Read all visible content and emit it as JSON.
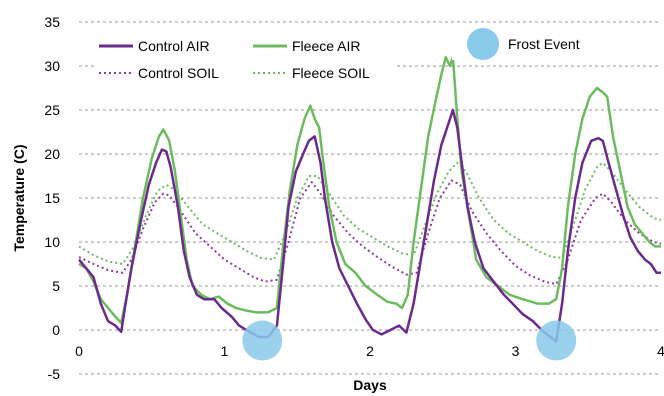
{
  "chart_data": {
    "type": "line",
    "xlabel": "Days",
    "ylabel": "Temperature (C)",
    "xlim": [
      0,
      4
    ],
    "ylim": [
      -5,
      35
    ],
    "x_ticks": [
      "0",
      "1",
      "2",
      "3",
      "4"
    ],
    "y_ticks": [
      "-5",
      "0",
      "5",
      "10",
      "15",
      "20",
      "25",
      "30",
      "35"
    ],
    "grid": "horizontal dashed",
    "legend_placement": "top",
    "series": [
      {
        "name": "Control AIR",
        "color": "#6b2a8c",
        "style": "solid",
        "points": [
          [
            0,
            8
          ],
          [
            0.05,
            7
          ],
          [
            0.1,
            6
          ],
          [
            0.15,
            3
          ],
          [
            0.2,
            1
          ],
          [
            0.25,
            0.5
          ],
          [
            0.29,
            -0.2
          ],
          [
            0.32,
            3
          ],
          [
            0.36,
            7
          ],
          [
            0.42,
            12
          ],
          [
            0.48,
            16.5
          ],
          [
            0.53,
            19
          ],
          [
            0.57,
            20.5
          ],
          [
            0.6,
            20.3
          ],
          [
            0.63,
            18.5
          ],
          [
            0.68,
            14
          ],
          [
            0.72,
            9
          ],
          [
            0.76,
            6
          ],
          [
            0.81,
            4
          ],
          [
            0.86,
            3.5
          ],
          [
            0.93,
            3.5
          ],
          [
            0.98,
            2.5
          ],
          [
            1.05,
            1.5
          ],
          [
            1.1,
            0.5
          ],
          [
            1.18,
            -0.3
          ],
          [
            1.24,
            -0.8
          ],
          [
            1.3,
            -0.8
          ],
          [
            1.36,
            0.5
          ],
          [
            1.4,
            7
          ],
          [
            1.44,
            14
          ],
          [
            1.49,
            18
          ],
          [
            1.54,
            20
          ],
          [
            1.58,
            21.5
          ],
          [
            1.62,
            22
          ],
          [
            1.66,
            19
          ],
          [
            1.69,
            15
          ],
          [
            1.74,
            10
          ],
          [
            1.79,
            7
          ],
          [
            1.85,
            5
          ],
          [
            1.91,
            3
          ],
          [
            1.97,
            1.2
          ],
          [
            2.02,
            0
          ],
          [
            2.08,
            -0.5
          ],
          [
            2.14,
            0
          ],
          [
            2.2,
            0.5
          ],
          [
            2.25,
            -0.3
          ],
          [
            2.3,
            3
          ],
          [
            2.35,
            8
          ],
          [
            2.4,
            13
          ],
          [
            2.44,
            17
          ],
          [
            2.49,
            21
          ],
          [
            2.54,
            23.5
          ],
          [
            2.57,
            25
          ],
          [
            2.6,
            23
          ],
          [
            2.63,
            19
          ],
          [
            2.67,
            14
          ],
          [
            2.72,
            10
          ],
          [
            2.78,
            7
          ],
          [
            2.85,
            5.5
          ],
          [
            2.92,
            4
          ],
          [
            2.98,
            3
          ],
          [
            3.05,
            1.8
          ],
          [
            3.12,
            1
          ],
          [
            3.18,
            0
          ],
          [
            3.24,
            -0.8
          ],
          [
            3.28,
            -1.3
          ],
          [
            3.32,
            3
          ],
          [
            3.36,
            9
          ],
          [
            3.41,
            15
          ],
          [
            3.46,
            19
          ],
          [
            3.52,
            21.5
          ],
          [
            3.57,
            21.8
          ],
          [
            3.6,
            21.5
          ],
          [
            3.64,
            19
          ],
          [
            3.69,
            16
          ],
          [
            3.74,
            13
          ],
          [
            3.79,
            10.5
          ],
          [
            3.84,
            9
          ],
          [
            3.89,
            8
          ],
          [
            3.93,
            7.5
          ],
          [
            3.97,
            6.5
          ],
          [
            4,
            6.5
          ]
        ]
      },
      {
        "name": "Fleece AIR",
        "color": "#6dbb5e",
        "style": "solid",
        "points": [
          [
            0,
            7.5
          ],
          [
            0.05,
            7
          ],
          [
            0.1,
            5.5
          ],
          [
            0.15,
            3.5
          ],
          [
            0.2,
            2.5
          ],
          [
            0.25,
            1.5
          ],
          [
            0.29,
            0.8
          ],
          [
            0.33,
            4
          ],
          [
            0.38,
            9
          ],
          [
            0.44,
            15
          ],
          [
            0.5,
            19.5
          ],
          [
            0.55,
            22
          ],
          [
            0.58,
            22.8
          ],
          [
            0.62,
            21.5
          ],
          [
            0.66,
            18
          ],
          [
            0.7,
            13
          ],
          [
            0.74,
            8
          ],
          [
            0.78,
            5
          ],
          [
            0.84,
            4
          ],
          [
            0.9,
            3.5
          ],
          [
            0.96,
            3.8
          ],
          [
            1.02,
            3
          ],
          [
            1.08,
            2.5
          ],
          [
            1.15,
            2.2
          ],
          [
            1.22,
            2
          ],
          [
            1.3,
            2
          ],
          [
            1.36,
            2.5
          ],
          [
            1.4,
            9
          ],
          [
            1.45,
            16
          ],
          [
            1.5,
            21
          ],
          [
            1.55,
            24
          ],
          [
            1.59,
            25.5
          ],
          [
            1.62,
            24
          ],
          [
            1.65,
            23
          ],
          [
            1.68,
            19
          ],
          [
            1.72,
            14
          ],
          [
            1.77,
            10
          ],
          [
            1.83,
            7.5
          ],
          [
            1.9,
            6.5
          ],
          [
            1.97,
            5
          ],
          [
            2.05,
            4
          ],
          [
            2.12,
            3.2
          ],
          [
            2.18,
            3
          ],
          [
            2.22,
            2.5
          ],
          [
            2.26,
            4
          ],
          [
            2.3,
            10
          ],
          [
            2.35,
            16
          ],
          [
            2.4,
            22
          ],
          [
            2.45,
            26
          ],
          [
            2.49,
            29
          ],
          [
            2.52,
            31
          ],
          [
            2.55,
            30
          ],
          [
            2.57,
            31
          ],
          [
            2.6,
            24
          ],
          [
            2.63,
            18
          ],
          [
            2.68,
            13
          ],
          [
            2.73,
            8
          ],
          [
            2.8,
            6
          ],
          [
            2.88,
            5
          ],
          [
            2.96,
            4
          ],
          [
            3.05,
            3.5
          ],
          [
            3.15,
            3
          ],
          [
            3.23,
            3
          ],
          [
            3.28,
            3.5
          ],
          [
            3.32,
            7
          ],
          [
            3.36,
            14
          ],
          [
            3.41,
            20
          ],
          [
            3.46,
            24
          ],
          [
            3.51,
            26.5
          ],
          [
            3.56,
            27.5
          ],
          [
            3.6,
            27
          ],
          [
            3.63,
            26.5
          ],
          [
            3.67,
            22
          ],
          [
            3.72,
            18
          ],
          [
            3.77,
            14
          ],
          [
            3.82,
            12
          ],
          [
            3.87,
            11
          ],
          [
            3.92,
            10
          ],
          [
            3.96,
            9.5
          ],
          [
            4,
            9.5
          ]
        ]
      },
      {
        "name": "Control SOIL",
        "color": "#8e3a9e",
        "style": "dotted",
        "points": [
          [
            0,
            8.3
          ],
          [
            0.1,
            7.5
          ],
          [
            0.2,
            6.8
          ],
          [
            0.3,
            6.5
          ],
          [
            0.36,
            8
          ],
          [
            0.44,
            11.5
          ],
          [
            0.52,
            14.5
          ],
          [
            0.58,
            15.5
          ],
          [
            0.62,
            15.3
          ],
          [
            0.7,
            13.5
          ],
          [
            0.8,
            11
          ],
          [
            0.9,
            9.5
          ],
          [
            1.0,
            8
          ],
          [
            1.1,
            7
          ],
          [
            1.2,
            6
          ],
          [
            1.28,
            5.5
          ],
          [
            1.36,
            5.7
          ],
          [
            1.44,
            10
          ],
          [
            1.52,
            15
          ],
          [
            1.6,
            16.8
          ],
          [
            1.66,
            15.5
          ],
          [
            1.75,
            13
          ],
          [
            1.85,
            11
          ],
          [
            1.95,
            9.5
          ],
          [
            2.05,
            8.3
          ],
          [
            2.15,
            7.2
          ],
          [
            2.25,
            6.3
          ],
          [
            2.32,
            6.5
          ],
          [
            2.4,
            11
          ],
          [
            2.48,
            15
          ],
          [
            2.56,
            17
          ],
          [
            2.62,
            16.5
          ],
          [
            2.7,
            13.5
          ],
          [
            2.8,
            11
          ],
          [
            2.9,
            9
          ],
          [
            3.0,
            7.3
          ],
          [
            3.1,
            6.2
          ],
          [
            3.2,
            5.5
          ],
          [
            3.28,
            5.2
          ],
          [
            3.36,
            8
          ],
          [
            3.45,
            12.5
          ],
          [
            3.55,
            15
          ],
          [
            3.6,
            15.5
          ],
          [
            3.66,
            14.5
          ],
          [
            3.75,
            12.5
          ],
          [
            3.85,
            11
          ],
          [
            3.95,
            10
          ],
          [
            4,
            9.8
          ]
        ]
      },
      {
        "name": "Fleece SOIL",
        "color": "#6dbb5e",
        "style": "dotted",
        "points": [
          [
            0,
            9.5
          ],
          [
            0.1,
            8.5
          ],
          [
            0.2,
            7.8
          ],
          [
            0.3,
            7.5
          ],
          [
            0.38,
            9.5
          ],
          [
            0.46,
            13
          ],
          [
            0.54,
            15.8
          ],
          [
            0.6,
            16.5
          ],
          [
            0.65,
            16
          ],
          [
            0.75,
            14
          ],
          [
            0.85,
            12
          ],
          [
            0.95,
            11
          ],
          [
            1.05,
            10
          ],
          [
            1.15,
            9
          ],
          [
            1.25,
            8.2
          ],
          [
            1.34,
            8
          ],
          [
            1.42,
            11
          ],
          [
            1.5,
            15
          ],
          [
            1.58,
            17.5
          ],
          [
            1.64,
            17.5
          ],
          [
            1.72,
            15.5
          ],
          [
            1.82,
            13
          ],
          [
            1.92,
            11.5
          ],
          [
            2.02,
            10.5
          ],
          [
            2.12,
            9.5
          ],
          [
            2.22,
            8.7
          ],
          [
            2.3,
            8.5
          ],
          [
            2.38,
            12
          ],
          [
            2.46,
            15.5
          ],
          [
            2.54,
            18
          ],
          [
            2.6,
            19
          ],
          [
            2.66,
            18
          ],
          [
            2.75,
            15
          ],
          [
            2.85,
            12.5
          ],
          [
            2.95,
            11
          ],
          [
            3.05,
            10
          ],
          [
            3.15,
            9
          ],
          [
            3.25,
            8.3
          ],
          [
            3.32,
            8.2
          ],
          [
            3.4,
            12
          ],
          [
            3.48,
            16
          ],
          [
            3.56,
            18.5
          ],
          [
            3.6,
            19
          ],
          [
            3.66,
            18
          ],
          [
            3.75,
            16
          ],
          [
            3.85,
            14
          ],
          [
            3.95,
            12.7
          ],
          [
            4,
            12.5
          ]
        ]
      }
    ],
    "frost_event": {
      "label": "Frost Event",
      "color": "#89c9ea",
      "markers": [
        [
          1.26,
          -1.2
        ],
        [
          3.28,
          -1.2
        ]
      ]
    }
  }
}
